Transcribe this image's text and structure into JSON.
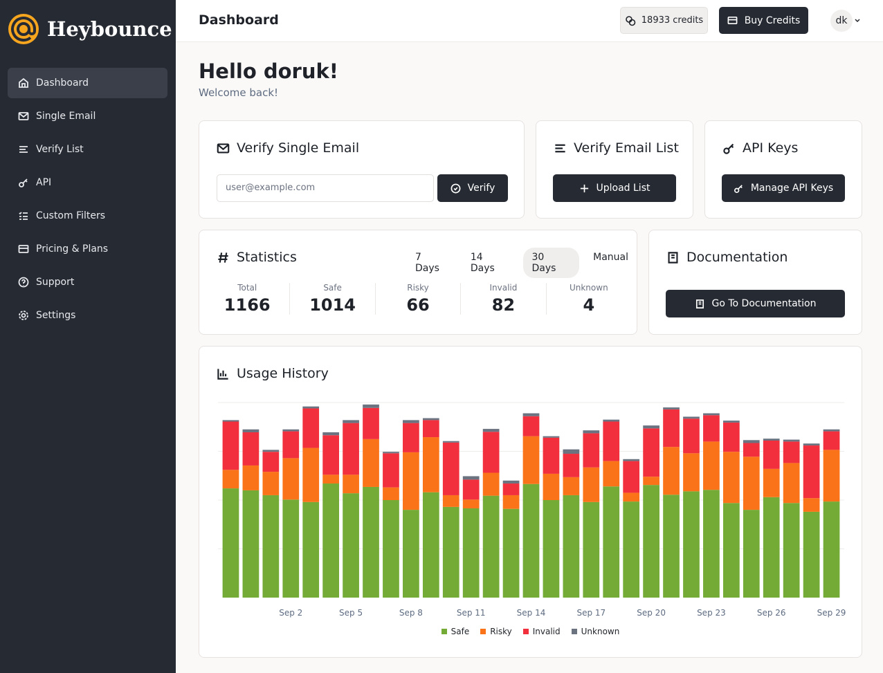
{
  "sidebar": {
    "brand": "Heybounce",
    "nav": [
      "Dashboard",
      "Single Email",
      "Verify List",
      "API",
      "Custom Filters",
      "Pricing & Plans",
      "Support",
      "Settings"
    ]
  },
  "header": {
    "title": "Dashboard",
    "credits": "18933 credits",
    "buy": "Buy Credits",
    "user": "dk"
  },
  "greeting": {
    "title": "Hello doruk!",
    "subtitle": "Welcome back!"
  },
  "verify_single": {
    "title": "Verify Single Email",
    "placeholder": "user@example.com",
    "button": "Verify"
  },
  "verify_list": {
    "title": "Verify Email List",
    "button": "Upload List"
  },
  "api_keys": {
    "title": "API Keys",
    "button": "Manage API Keys"
  },
  "statistics": {
    "title": "Statistics",
    "ranges": [
      "7 Days",
      "14 Days",
      "30 Days",
      "Manual"
    ],
    "items": [
      {
        "label": "Total",
        "value": 1166
      },
      {
        "label": "Safe",
        "value": 1014
      },
      {
        "label": "Risky",
        "value": 66
      },
      {
        "label": "Invalid",
        "value": 82
      },
      {
        "label": "Unknown",
        "value": 4
      }
    ]
  },
  "documentation": {
    "title": "Documentation",
    "button": "Go To Documentation"
  },
  "chart_data": {
    "type": "stacked_bar",
    "title": "Usage History",
    "categories": [
      null,
      null,
      null,
      "Sep 2",
      null,
      null,
      "Sep 5",
      null,
      null,
      "Sep 8",
      null,
      null,
      "Sep 11",
      null,
      null,
      "Sep 14",
      null,
      null,
      "Sep 17",
      null,
      null,
      "Sep 20",
      null,
      null,
      "Sep 23",
      null,
      null,
      "Sep 26",
      null,
      null,
      "Sep 29"
    ],
    "ylim": [
      0,
      40
    ],
    "gridlines": [
      10,
      20,
      30,
      40
    ],
    "series": [
      {
        "name": "Safe",
        "color": "#73ab36",
        "values": [
          22.4,
          22.0,
          21.0,
          20.1,
          19.6,
          23.4,
          21.4,
          22.7,
          20.0,
          18.0,
          21.6,
          18.6,
          18.3,
          20.9,
          18.2,
          23.3,
          20.0,
          21.0,
          19.6,
          22.8,
          19.7,
          23.1,
          21.1,
          21.8,
          22.1,
          19.4,
          18.0,
          20.6,
          19.4,
          17.6,
          19.7
        ]
      },
      {
        "name": "Risky",
        "color": "#fb7318",
        "values": [
          3.8,
          5.1,
          4.8,
          8.5,
          11.1,
          1.8,
          3.8,
          9.8,
          2.6,
          11.8,
          11.3,
          2.4,
          1.8,
          4.7,
          2.8,
          9.8,
          5.4,
          3.7,
          7.1,
          5.2,
          1.8,
          1.7,
          9.8,
          7.8,
          9.9,
          10.5,
          10.9,
          5.8,
          8.2,
          2.8,
          10.6
        ]
      },
      {
        "name": "Invalid",
        "color": "#f2303d",
        "values": [
          9.9,
          6.8,
          4.1,
          5.5,
          8.1,
          8.1,
          10.6,
          6.4,
          7.0,
          6.0,
          3.5,
          10.8,
          4.1,
          8.4,
          2.4,
          4.1,
          7.4,
          4.8,
          7.0,
          8.1,
          6.5,
          9.9,
          7.7,
          7.1,
          5.4,
          6.0,
          2.8,
          5.8,
          4.4,
          10.8,
          3.8
        ]
      },
      {
        "name": "Unknown",
        "color": "#6b7280",
        "values": [
          0.3,
          0.6,
          0.4,
          0.4,
          0.4,
          0.6,
          0.6,
          0.7,
          0.3,
          0.6,
          0.4,
          0.3,
          0.7,
          0.6,
          0.6,
          0.6,
          0.3,
          0.9,
          0.6,
          0.4,
          0.4,
          0.6,
          0.4,
          0.4,
          0.4,
          0.4,
          0.6,
          0.4,
          0.4,
          0.4,
          0.4
        ]
      }
    ]
  }
}
